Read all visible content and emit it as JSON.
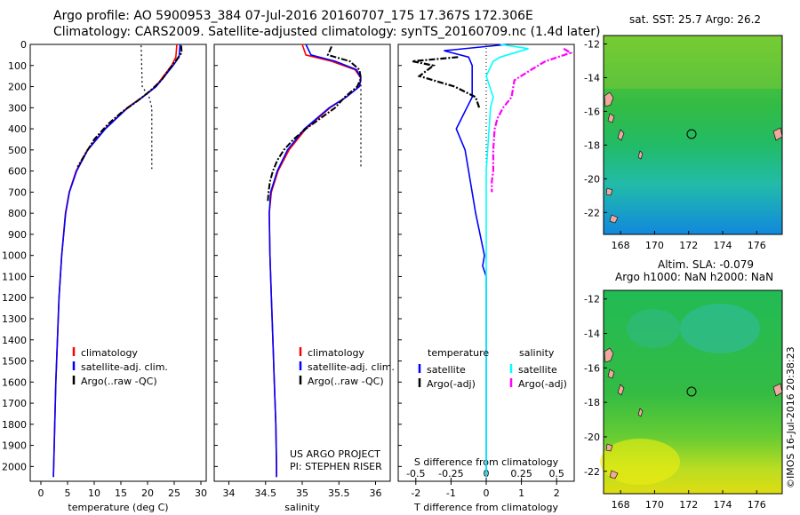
{
  "header": {
    "line1": "Argo profile: AO 5900953_384 07-Jul-2016 20160707_175 17.367S 172.306E",
    "line2": "Climatology: CARS2009. Satellite-adjusted climatology: synTS_20160709.nc (1.4d later)"
  },
  "colors": {
    "climatology": "#ff0000",
    "satellite": "#0000ff",
    "argo": "#000000",
    "salinity_satellite": "#00ffff",
    "salinity_argo": "#ff00ff"
  },
  "chart_data": [
    {
      "type": "line",
      "panel": "temperature",
      "xlabel": "temperature (deg C)",
      "xlim": [
        -2,
        31
      ],
      "xticks": [
        0,
        5,
        10,
        15,
        20,
        25,
        30
      ],
      "ylim": [
        2070,
        0
      ],
      "yticks": [
        0,
        100,
        200,
        300,
        400,
        500,
        600,
        700,
        800,
        900,
        1000,
        1100,
        1200,
        1300,
        1400,
        1500,
        1600,
        1700,
        1800,
        1900,
        2000
      ],
      "legend": [
        "climatology",
        "satellite-adj. clim.",
        "Argo(..raw -QC)"
      ],
      "series": [
        {
          "name": "climatology",
          "y": [
            0,
            60,
            100,
            150,
            200,
            250,
            300,
            400,
            500,
            600,
            700,
            800,
            1000,
            1200,
            1400,
            1600,
            1800,
            2000,
            2050
          ],
          "x": [
            25.5,
            25.3,
            24.5,
            23,
            21.5,
            19,
            16.2,
            12,
            8.7,
            6.6,
            5.3,
            4.6,
            3.9,
            3.4,
            3.1,
            2.8,
            2.6,
            2.4,
            2.35
          ]
        },
        {
          "name": "satellite-adj. clim.",
          "y": [
            0,
            60,
            100,
            150,
            200,
            250,
            300,
            400,
            500,
            600,
            700,
            800,
            1000,
            1200,
            1400,
            1600,
            1800,
            2000,
            2050
          ],
          "x": [
            26.1,
            25.9,
            24.8,
            23.2,
            21.6,
            19.1,
            16.3,
            12.1,
            8.8,
            6.7,
            5.35,
            4.65,
            3.9,
            3.4,
            3.1,
            2.8,
            2.6,
            2.4,
            2.35
          ]
        },
        {
          "name": "Argo(..raw -QC)",
          "y": [
            5,
            40,
            80,
            120,
            170,
            220,
            270,
            320,
            380,
            450,
            520,
            580
          ],
          "x": [
            26.3,
            26.4,
            25.2,
            24,
            22.6,
            20.5,
            18,
            15.2,
            12.5,
            10,
            8.3,
            6.9
          ]
        },
        {
          "name": "Argo raw",
          "y": [
            5,
            100,
            200,
            250,
            300,
            400,
            500,
            590
          ],
          "x": [
            18.8,
            18.9,
            19,
            20.3,
            20.8,
            20.8,
            20.8,
            20.8
          ]
        }
      ]
    },
    {
      "type": "line",
      "panel": "salinity",
      "xlabel": "salinity",
      "xlim": [
        33.8,
        36.2
      ],
      "xticks": [
        34,
        34.5,
        35,
        35.5,
        36
      ],
      "ylim": [
        2070,
        0
      ],
      "legend": [
        "climatology",
        "satellite-adj. clim.",
        "Argo(..raw -QC)"
      ],
      "annotations": [
        "US ARGO PROJECT",
        "PI: STEPHEN RISER"
      ],
      "series": [
        {
          "name": "climatology",
          "y": [
            0,
            50,
            80,
            120,
            160,
            200,
            250,
            300,
            400,
            500,
            600,
            700,
            800,
            1000,
            1200,
            1400,
            1600,
            1800,
            2000,
            2050
          ],
          "x": [
            35.0,
            35.05,
            35.4,
            35.72,
            35.8,
            35.78,
            35.6,
            35.38,
            35.05,
            34.82,
            34.67,
            34.58,
            34.55,
            34.56,
            34.58,
            34.6,
            34.62,
            34.64,
            34.65,
            34.65
          ]
        },
        {
          "name": "satellite-adj. clim.",
          "y": [
            0,
            50,
            80,
            120,
            160,
            200,
            250,
            300,
            400,
            500,
            600,
            700,
            800,
            1000,
            1200,
            1400,
            1600,
            1800,
            2000,
            2050
          ],
          "x": [
            35.05,
            35.12,
            35.45,
            35.74,
            35.8,
            35.78,
            35.6,
            35.37,
            35.03,
            34.8,
            34.66,
            34.57,
            34.55,
            34.56,
            34.58,
            34.6,
            34.62,
            34.64,
            34.65,
            34.65
          ]
        },
        {
          "name": "Argo(..raw -QC)",
          "y": [
            10,
            50,
            80,
            120,
            160,
            200,
            250,
            300,
            350,
            400,
            450,
            500,
            550,
            600,
            650,
            700,
            750
          ],
          "x": [
            35.4,
            35.35,
            35.65,
            35.78,
            35.8,
            35.75,
            35.58,
            35.45,
            35.25,
            35.05,
            34.88,
            34.75,
            34.66,
            34.6,
            34.56,
            34.54,
            34.53
          ]
        },
        {
          "name": "Argo raw",
          "y": [
            170,
            250,
            350,
            450,
            520,
            580
          ],
          "x": [
            35.8,
            35.8,
            35.8,
            35.8,
            35.8,
            35.8
          ]
        }
      ]
    },
    {
      "type": "line",
      "panel": "difference",
      "xlabel_top": "S difference from climatology",
      "xlabel": "T difference from climatology",
      "x_t_lim": [
        -2.5,
        2.5
      ],
      "x_t_ticks": [
        -2,
        -1,
        0,
        1,
        2
      ],
      "x_s_lim": [
        -0.625,
        0.625
      ],
      "x_s_ticks": [
        -0.5,
        -0.25,
        0,
        0.25,
        0.5
      ],
      "x_s_ticklabels": [
        "-0.5",
        "-0.25",
        "0",
        "0.25",
        "0.5"
      ],
      "ylim": [
        2070,
        0
      ],
      "legend_left_title": "temperature",
      "legend_right_title": "salinity",
      "legend": [
        "satellite",
        "Argo(-adj)",
        "satellite",
        "Argo(-adj)"
      ],
      "series": [
        {
          "name": "temperature satellite",
          "y": [
            0,
            30,
            60,
            100,
            150,
            200,
            250,
            300,
            400,
            500,
            600,
            800,
            1000,
            1050,
            1100,
            1300,
            1600,
            2000,
            2050
          ],
          "x_t": [
            0.6,
            -1.2,
            -0.5,
            -0.4,
            -0.4,
            -0.4,
            -0.4,
            -0.55,
            -0.85,
            -0.6,
            -0.5,
            -0.3,
            -0.05,
            -0.1,
            0,
            0,
            0,
            0,
            0
          ]
        },
        {
          "name": "temperature Argo(-adj)",
          "y": [
            60,
            80,
            100,
            150,
            200,
            250,
            300
          ],
          "x_t": [
            -0.8,
            -2.1,
            -1.5,
            -1.9,
            -0.9,
            -0.3,
            -0.2
          ]
        },
        {
          "name": "salinity satellite",
          "y": [
            0,
            20,
            60,
            80,
            150,
            250,
            300,
            400,
            500,
            600,
            800,
            1000,
            1200,
            1400,
            1600,
            1800,
            2000,
            2050
          ],
          "x_s": [
            0.1,
            0.3,
            0.1,
            0.05,
            0.0,
            0.05,
            0.03,
            0.02,
            0.01,
            0.0,
            0.0,
            0.0,
            0.0,
            0.0,
            0.0,
            0.0,
            0.0,
            0.0
          ]
        },
        {
          "name": "salinity Argo(-adj)",
          "y": [
            20,
            40,
            80,
            120,
            170,
            250,
            300,
            350,
            400,
            500,
            600,
            650,
            700
          ],
          "x_s": [
            0.55,
            0.6,
            0.42,
            0.32,
            0.2,
            0.18,
            0.12,
            0.08,
            0.06,
            0.05,
            0.05,
            0.04,
            0.04
          ]
        }
      ]
    }
  ],
  "maps": {
    "sst_title": "sat. SST: 25.7 Argo: 26.2",
    "sla_title_1": "Altim. SLA: -0.079",
    "sla_title_2": "Argo h1000: NaN h2000: NaN",
    "lon_ticks": [
      "168",
      "170",
      "172",
      "174",
      "176"
    ],
    "lat_ticks": [
      "-12",
      "-14",
      "-16",
      "-18",
      "-20",
      "-22"
    ],
    "credit": "©IMOS 16-Jul-2016 20:38:23"
  }
}
